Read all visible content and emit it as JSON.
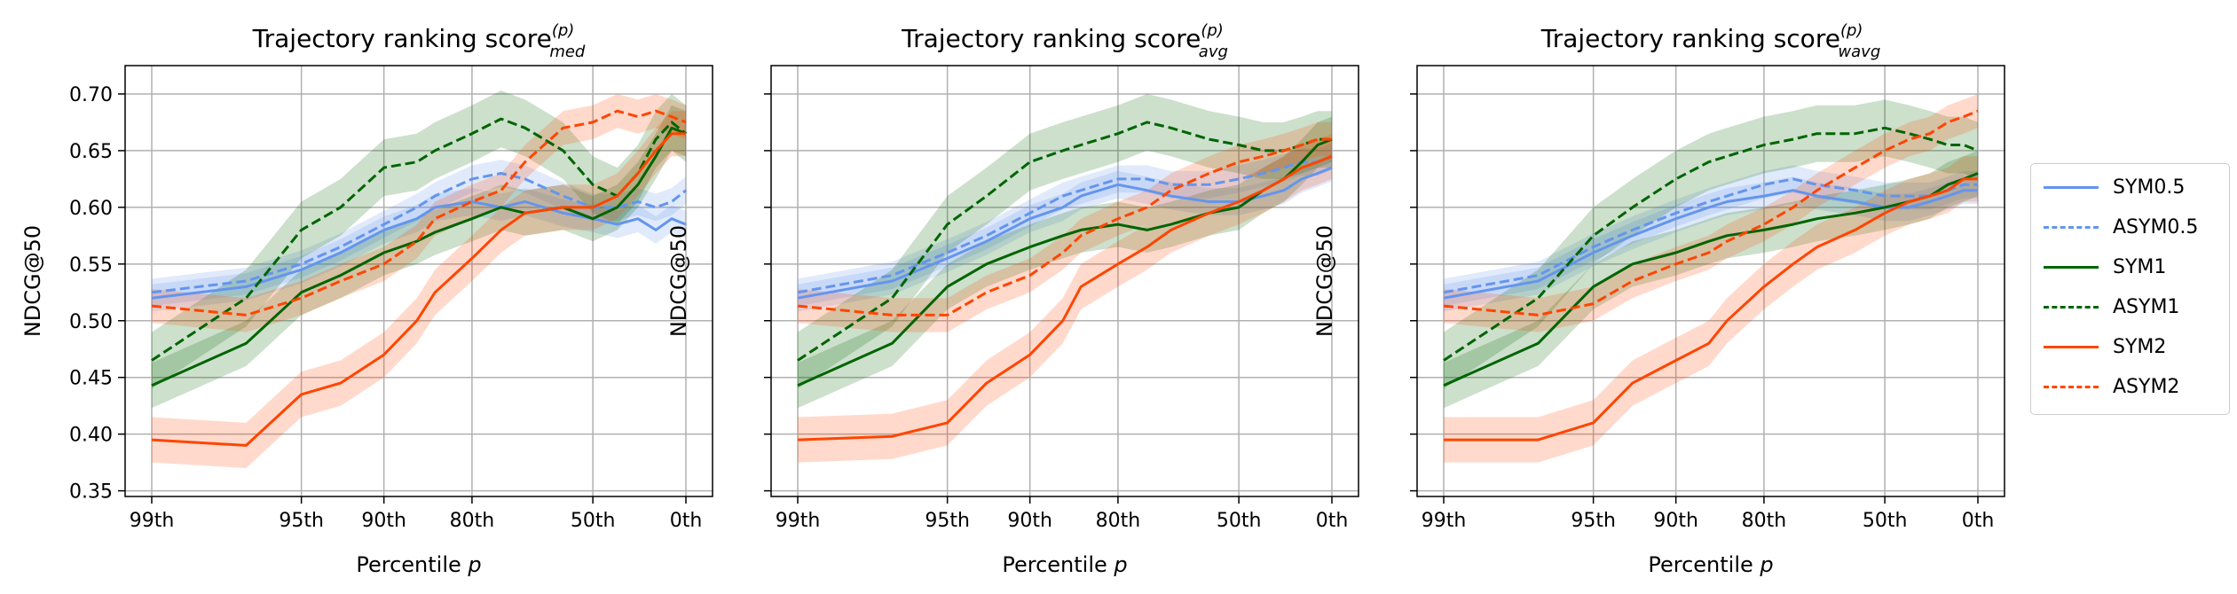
{
  "colors": {
    "SYM0.5": "#6495ed",
    "ASYM0.5": "#6495ed",
    "SYM1": "#006400",
    "ASYM1": "#006400",
    "SYM2": "#ff4500",
    "ASYM2": "#ff4500"
  },
  "legend": {
    "placement": "right, outside",
    "entries": [
      {
        "label": "SYM0.5",
        "style": "solid"
      },
      {
        "label": "ASYM0.5",
        "style": "dashed"
      },
      {
        "label": "SYM1",
        "style": "solid"
      },
      {
        "label": "ASYM1",
        "style": "dashed"
      },
      {
        "label": "SYM2",
        "style": "solid"
      },
      {
        "label": "ASYM2",
        "style": "dashed"
      }
    ]
  },
  "chart_data": [
    {
      "type": "line",
      "title": "Trajectory ranking score",
      "title_sup": "(p)",
      "title_sub": "med",
      "xlabel": "Percentile p",
      "ylabel": "NDCG@50",
      "x_scale": "log of (100 - p), reversed",
      "xticks": [
        "99th",
        "95th",
        "90th",
        "80th",
        "50th",
        "0th"
      ],
      "yticks": [
        "0.35",
        "0.40",
        "0.45",
        "0.50",
        "0.55",
        "0.60",
        "0.65",
        "0.70"
      ],
      "ylim": [
        0.345,
        0.725
      ],
      "grid": true,
      "shaded_bands": "confidence interval around each series",
      "x": [
        99,
        97,
        95,
        93,
        90,
        87,
        85,
        80,
        75,
        70,
        60,
        50,
        40,
        30,
        20,
        10,
        0
      ],
      "series": [
        {
          "name": "SYM0.5",
          "style": "solid",
          "values": [
            0.52,
            0.53,
            0.545,
            0.56,
            0.58,
            0.59,
            0.6,
            0.605,
            0.6,
            0.605,
            0.595,
            0.59,
            0.585,
            0.59,
            0.58,
            0.59,
            0.585
          ],
          "band": 0.012
        },
        {
          "name": "ASYM0.5",
          "style": "dashed",
          "values": [
            0.525,
            0.535,
            0.55,
            0.565,
            0.585,
            0.6,
            0.61,
            0.625,
            0.63,
            0.625,
            0.61,
            0.6,
            0.6,
            0.605,
            0.6,
            0.605,
            0.615
          ],
          "band": 0.012
        },
        {
          "name": "SYM1",
          "style": "solid",
          "values": [
            0.443,
            0.48,
            0.525,
            0.54,
            0.56,
            0.57,
            0.578,
            0.59,
            0.6,
            0.595,
            0.6,
            0.59,
            0.6,
            0.62,
            0.645,
            0.67,
            0.665
          ],
          "band": 0.02
        },
        {
          "name": "ASYM1",
          "style": "dashed",
          "values": [
            0.465,
            0.52,
            0.58,
            0.6,
            0.635,
            0.64,
            0.65,
            0.665,
            0.678,
            0.67,
            0.65,
            0.62,
            0.61,
            0.63,
            0.66,
            0.675,
            0.665
          ],
          "band": 0.025
        },
        {
          "name": "SYM2",
          "style": "solid",
          "values": [
            0.395,
            0.39,
            0.435,
            0.445,
            0.47,
            0.5,
            0.525,
            0.555,
            0.58,
            0.595,
            0.6,
            0.6,
            0.61,
            0.63,
            0.65,
            0.665,
            0.665
          ],
          "band": 0.02
        },
        {
          "name": "ASYM2",
          "style": "dashed",
          "values": [
            0.513,
            0.505,
            0.52,
            0.535,
            0.55,
            0.57,
            0.59,
            0.605,
            0.615,
            0.64,
            0.67,
            0.675,
            0.685,
            0.68,
            0.685,
            0.68,
            0.675
          ],
          "band": 0.015
        }
      ]
    },
    {
      "type": "line",
      "title": "Trajectory ranking score",
      "title_sup": "(p)",
      "title_sub": "avg",
      "xlabel": "Percentile p",
      "ylabel": "NDCG@50",
      "x_scale": "log of (100 - p), reversed",
      "xticks": [
        "99th",
        "95th",
        "90th",
        "80th",
        "50th",
        "0th"
      ],
      "ylim": [
        0.345,
        0.725
      ],
      "grid": true,
      "shaded_bands": "confidence interval around each series",
      "x": [
        99,
        97,
        95,
        93,
        90,
        87,
        85,
        80,
        75,
        70,
        60,
        50,
        40,
        30,
        20,
        10,
        0
      ],
      "series": [
        {
          "name": "SYM0.5",
          "style": "solid",
          "values": [
            0.52,
            0.535,
            0.555,
            0.57,
            0.59,
            0.6,
            0.61,
            0.62,
            0.615,
            0.61,
            0.605,
            0.605,
            0.61,
            0.615,
            0.625,
            0.63,
            0.635
          ],
          "band": 0.012
        },
        {
          "name": "ASYM0.5",
          "style": "dashed",
          "values": [
            0.525,
            0.54,
            0.56,
            0.575,
            0.595,
            0.61,
            0.615,
            0.625,
            0.625,
            0.62,
            0.62,
            0.625,
            0.63,
            0.635,
            0.64,
            0.64,
            0.645
          ],
          "band": 0.012
        },
        {
          "name": "SYM1",
          "style": "solid",
          "values": [
            0.443,
            0.48,
            0.53,
            0.55,
            0.565,
            0.575,
            0.58,
            0.585,
            0.58,
            0.585,
            0.595,
            0.6,
            0.615,
            0.625,
            0.64,
            0.655,
            0.66
          ],
          "band": 0.02
        },
        {
          "name": "ASYM1",
          "style": "dashed",
          "values": [
            0.465,
            0.52,
            0.585,
            0.61,
            0.64,
            0.65,
            0.655,
            0.665,
            0.675,
            0.67,
            0.66,
            0.655,
            0.65,
            0.65,
            0.655,
            0.66,
            0.66
          ],
          "band": 0.025
        },
        {
          "name": "SYM2",
          "style": "solid",
          "values": [
            0.395,
            0.398,
            0.41,
            0.445,
            0.47,
            0.5,
            0.53,
            0.55,
            0.565,
            0.58,
            0.595,
            0.605,
            0.615,
            0.625,
            0.635,
            0.64,
            0.645
          ],
          "band": 0.02
        },
        {
          "name": "ASYM2",
          "style": "dashed",
          "values": [
            0.513,
            0.505,
            0.505,
            0.525,
            0.54,
            0.56,
            0.575,
            0.59,
            0.6,
            0.615,
            0.63,
            0.64,
            0.645,
            0.65,
            0.655,
            0.66,
            0.66
          ],
          "band": 0.015
        }
      ]
    },
    {
      "type": "line",
      "title": "Trajectory ranking score",
      "title_sup": "(p)",
      "title_sub": "wavg",
      "xlabel": "Percentile p",
      "ylabel": "NDCG@50",
      "x_scale": "log of (100 - p), reversed",
      "xticks": [
        "99th",
        "95th",
        "90th",
        "80th",
        "50th",
        "0th"
      ],
      "ylim": [
        0.345,
        0.725
      ],
      "grid": true,
      "shaded_bands": "confidence interval around each series",
      "x": [
        99,
        97,
        95,
        93,
        90,
        87,
        85,
        80,
        75,
        70,
        60,
        50,
        40,
        30,
        20,
        10,
        0
      ],
      "series": [
        {
          "name": "SYM0.5",
          "style": "solid",
          "values": [
            0.52,
            0.535,
            0.56,
            0.575,
            0.59,
            0.6,
            0.605,
            0.61,
            0.615,
            0.61,
            0.605,
            0.6,
            0.6,
            0.605,
            0.61,
            0.615,
            0.615
          ],
          "band": 0.012
        },
        {
          "name": "ASYM0.5",
          "style": "dashed",
          "values": [
            0.525,
            0.54,
            0.565,
            0.58,
            0.595,
            0.605,
            0.61,
            0.62,
            0.625,
            0.62,
            0.615,
            0.61,
            0.61,
            0.61,
            0.615,
            0.62,
            0.62
          ],
          "band": 0.012
        },
        {
          "name": "SYM1",
          "style": "solid",
          "values": [
            0.443,
            0.48,
            0.53,
            0.55,
            0.56,
            0.57,
            0.575,
            0.58,
            0.585,
            0.59,
            0.595,
            0.6,
            0.605,
            0.61,
            0.62,
            0.625,
            0.63
          ],
          "band": 0.02
        },
        {
          "name": "ASYM1",
          "style": "dashed",
          "values": [
            0.465,
            0.52,
            0.575,
            0.6,
            0.625,
            0.64,
            0.645,
            0.655,
            0.66,
            0.665,
            0.665,
            0.67,
            0.665,
            0.66,
            0.655,
            0.655,
            0.65
          ],
          "band": 0.025
        },
        {
          "name": "SYM2",
          "style": "solid",
          "values": [
            0.395,
            0.395,
            0.41,
            0.445,
            0.465,
            0.48,
            0.5,
            0.53,
            0.55,
            0.565,
            0.58,
            0.595,
            0.605,
            0.61,
            0.615,
            0.625,
            0.625
          ],
          "band": 0.02
        },
        {
          "name": "ASYM2",
          "style": "dashed",
          "values": [
            0.513,
            0.505,
            0.515,
            0.535,
            0.55,
            0.56,
            0.57,
            0.585,
            0.6,
            0.615,
            0.635,
            0.65,
            0.66,
            0.665,
            0.675,
            0.68,
            0.685
          ],
          "band": 0.015
        }
      ]
    }
  ]
}
